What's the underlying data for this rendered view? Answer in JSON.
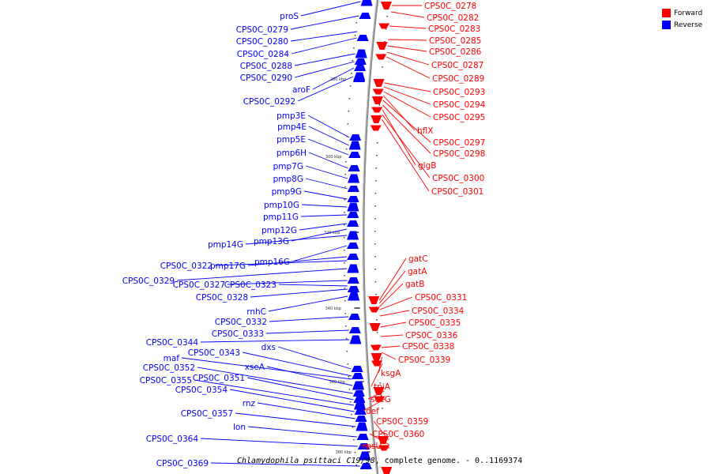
{
  "title": {
    "organism": "Chlamydophila psittaci C19/98",
    "rest": ", complete genome. - 0..1169374"
  },
  "legend": [
    {
      "label": "Forward",
      "color": "#ff0000"
    },
    {
      "label": "Reverse",
      "color": "#0000ff"
    }
  ],
  "scale_ticks": [
    "280 kbp",
    "300 kbp",
    "320 kbp",
    "340 kbp",
    "360 kbp",
    "380 kbp"
  ],
  "reverse_genes": [
    "proS",
    "CPS0C_0279",
    "CPS0C_0280",
    "CPS0C_0284",
    "CPS0C_0288",
    "CPS0C_0290",
    "aroF",
    "CPS0C_0292",
    "pmp3E",
    "pmp4E",
    "pmp5E",
    "pmp6H",
    "pmp7G",
    "pmp8G",
    "pmp9G",
    "pmp10G",
    "pmp11G",
    "pmp12G",
    "pmp13G",
    "pmp14G",
    "pmp16G",
    "pmp17G",
    "CPS0C_0322",
    "CPS0C_0329",
    "CPS0C_0327",
    "CPS0C_0323",
    "CPS0C_0328",
    "rnhC",
    "CPS0C_0332",
    "CPS0C_0333",
    "CPS0C_0344",
    "dxs",
    "CPS0C_0343",
    "maf",
    "xseA",
    "CPS0C_0352",
    "CPS0C_0351",
    "CPS0C_0355",
    "CPS0C_0354",
    "rnz",
    "CPS0C_0357",
    "lon",
    "CPS0C_0364",
    "CPS0C_0369"
  ],
  "forward_genes": [
    "CPS0C_0278",
    "CPS0C_0282",
    "CPS0C_0283",
    "CPS0C_0285",
    "CPS0C_0286",
    "CPS0C_0287",
    "CPS0C_0289",
    "CPS0C_0293",
    "CPS0C_0294",
    "CPS0C_0295",
    "hflX",
    "CPS0C_0297",
    "CPS0C_0298",
    "glgB",
    "CPS0C_0300",
    "CPS0C_0301",
    "gatC",
    "gatA",
    "gatB",
    "CPS0C_0331",
    "CPS0C_0334",
    "CPS0C_0335",
    "CPS0C_0336",
    "CPS0C_0338",
    "CPS0C_0339",
    "ksgA",
    "tpiA",
    "secG",
    "def",
    "CPS0C_0359",
    "CPS0C_0360",
    "rpsU"
  ],
  "colors": {
    "forward": "#ff0000",
    "reverse": "#0000ff",
    "backbone": "#8c8c8c"
  }
}
